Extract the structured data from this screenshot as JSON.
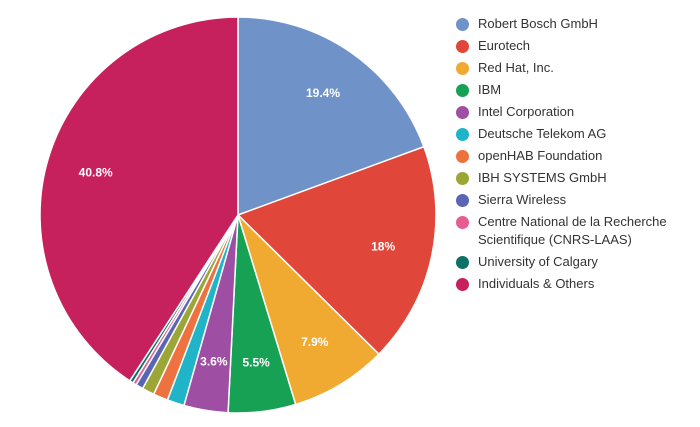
{
  "chart_data": {
    "type": "pie",
    "title": "",
    "legend_position": "right",
    "categories": [
      "Robert Bosch GmbH",
      "Eurotech",
      "Red Hat, Inc.",
      "IBM",
      "Intel Corporation",
      "Deutsche Telekom AG",
      "openHAB Foundation",
      "IBH SYSTEMS GmbH",
      "Sierra Wireless",
      "Centre National de la Recherche Scientifique (CNRS-LAAS)",
      "University of Calgary",
      "Individuals & Others"
    ],
    "values": [
      19.4,
      18,
      7.9,
      5.5,
      3.6,
      1.4,
      1.2,
      1.0,
      0.6,
      0.3,
      0.3,
      40.8
    ],
    "data_labels": [
      "19.4%",
      "18%",
      "7.9%",
      "5.5%",
      "3.6%",
      "",
      "",
      "",
      "",
      "",
      "",
      "40.8%"
    ],
    "colors": [
      "#6f93c9",
      "#e0463a",
      "#f0aa31",
      "#17a155",
      "#9e4ea3",
      "#20b4c8",
      "#ee7240",
      "#9ca637",
      "#5a66b4",
      "#e55d93",
      "#0f7166",
      "#c6215c"
    ]
  }
}
